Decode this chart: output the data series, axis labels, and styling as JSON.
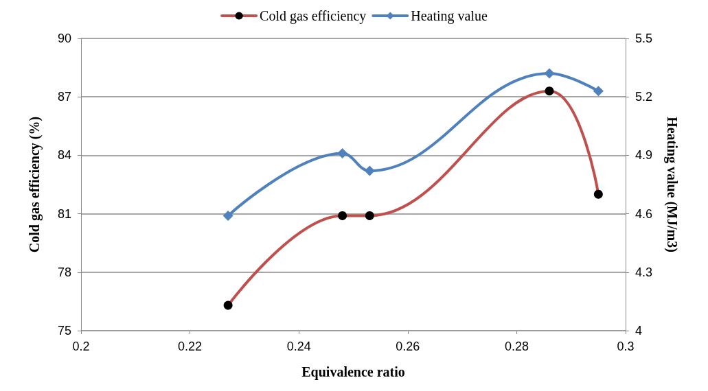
{
  "chart_data": {
    "type": "line",
    "xlabel": "Equivalence ratio",
    "ylabel": "Cold gas efficiency (%)",
    "y2label": "Heating value (MJ/m3)",
    "x": [
      0.227,
      0.248,
      0.253,
      0.286,
      0.295
    ],
    "series": [
      {
        "name": "Cold gas efficiency",
        "color": "#c0504d",
        "values": [
          76.3,
          80.9,
          80.9,
          87.3,
          82.0
        ],
        "marker": "circle"
      },
      {
        "name": "Heating value",
        "color": "#4f81bd",
        "values": [
          4.59,
          4.91,
          4.82,
          5.32,
          5.23
        ],
        "marker": "diamond",
        "axis": "y2"
      }
    ],
    "xlim": [
      0.2,
      0.3
    ],
    "xticks": [
      0.2,
      0.22,
      0.24,
      0.26,
      0.28,
      0.3
    ],
    "ylim": [
      75,
      90
    ],
    "yticks": [
      75,
      78,
      81,
      84,
      87,
      90
    ],
    "y2lim": [
      4,
      5.5
    ],
    "y2ticks": [
      4,
      4.3,
      4.6,
      4.9,
      5.2,
      5.5
    ],
    "grid": "y",
    "legend": "top",
    "line_style": "solid"
  }
}
